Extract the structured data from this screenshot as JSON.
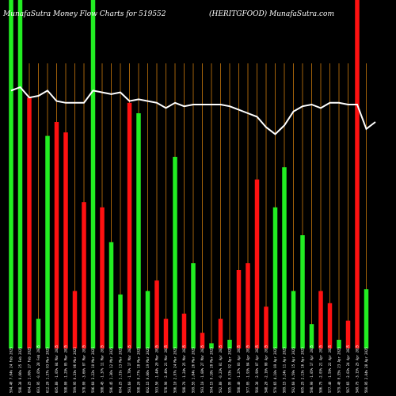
{
  "chart_data": {
    "type": "bar",
    "title_left": "MunafaSutra  Money Flow  Charts for 519552",
    "title_right": "(HERITGFOOD) MunafaSutra.com",
    "ylim": [
      0,
      100
    ],
    "grid": "vertical",
    "colors": {
      "up": "#22ee22",
      "down": "#ff1111",
      "line": "#ffffff",
      "grid": "#a0600a",
      "bg": "#000000"
    },
    "bars": [
      {
        "label": "594.40 7.04% 24 Feb 2025",
        "value": 100,
        "dir": "up"
      },
      {
        "label": "598.30 0.66% 25 Feb 2025",
        "value": 100,
        "dir": "up"
      },
      {
        "label": "604.25 1.00% 27 Feb 2025",
        "value": 72,
        "dir": "down"
      },
      {
        "label": "603.95 -0.05% 28 Feb 2025",
        "value": 8.5,
        "dir": "up"
      },
      {
        "label": "612.20 1.37% 03 Mar 2025",
        "value": 61,
        "dir": "up"
      },
      {
        "label": "605.80 -1.05% 04 Mar 2025",
        "value": 65,
        "dir": "down"
      },
      {
        "label": "598.00 -1.29% 05 Mar 2025",
        "value": 62,
        "dir": "down"
      },
      {
        "label": "599.95 0.33% 06 Mar 2025",
        "value": 16.5,
        "dir": "down"
      },
      {
        "label": "578.00 -3.66% 07 Mar 2025",
        "value": 42,
        "dir": "down"
      },
      {
        "label": "596.60 3.22% 10 Mar 2025",
        "value": 100,
        "dir": "up"
      },
      {
        "label": "588.45 -1.37% 11 Mar 2025",
        "value": 40.5,
        "dir": "down"
      },
      {
        "label": "596.45 1.36% 12 Mar 2025",
        "value": 30.5,
        "dir": "up"
      },
      {
        "label": "604.25 1.31% 13 Mar 2025",
        "value": 15.5,
        "dir": "up"
      },
      {
        "label": "593.60 -1.76% 17 Mar 2025",
        "value": 70.5,
        "dir": "down"
      },
      {
        "label": "598.20 0.77% 18 Mar 2025",
        "value": 67.5,
        "dir": "up"
      },
      {
        "label": "602.15 0.66% 19 Mar 2025",
        "value": 16.5,
        "dir": "up"
      },
      {
        "label": "593.50 -1.44% 20 Mar 2025",
        "value": 19.5,
        "dir": "down"
      },
      {
        "label": "578.90 -2.46% 21 Mar 2025",
        "value": 8.5,
        "dir": "down"
      },
      {
        "label": "596.10 2.97% 24 Mar 2025",
        "value": 55,
        "dir": "up"
      },
      {
        "label": "588.70 -1.24% 25 Mar 2025",
        "value": 10,
        "dir": "down"
      },
      {
        "label": "599.55 1.84% 26 Mar 2025",
        "value": 24.5,
        "dir": "up"
      },
      {
        "label": "593.10 -1.08% 27 Mar 2025",
        "value": 4.5,
        "dir": "down"
      },
      {
        "label": "594.15 0.18% 28 Mar 2025",
        "value": 1.5,
        "dir": "up"
      },
      {
        "label": "592.80 -0.23% 01 Apr 2025",
        "value": 8.5,
        "dir": "down"
      },
      {
        "label": "595.95 0.53% 02 Apr 2025",
        "value": 2.5,
        "dir": "up"
      },
      {
        "label": "588.40 -1.27% 03 Apr 2025",
        "value": 22.5,
        "dir": "down"
      },
      {
        "label": "577.05 -1.93% 04 Apr 2025",
        "value": 24.5,
        "dir": "down"
      },
      {
        "label": "560.30 -2.90% 07 Apr 2025",
        "value": 48.5,
        "dir": "down"
      },
      {
        "label": "548.20 -2.16% 08 Apr 2025",
        "value": 12,
        "dir": "down"
      },
      {
        "label": "570.65 4.10% 09 Apr 2025",
        "value": 40.5,
        "dir": "up"
      },
      {
        "label": "589.15 3.24% 11 Apr 2025",
        "value": 52,
        "dir": "up"
      },
      {
        "label": "592.60 0.59% 15 Apr 2025",
        "value": 16.5,
        "dir": "up"
      },
      {
        "label": "605.25 2.13% 16 Apr 2025",
        "value": 32.5,
        "dir": "up"
      },
      {
        "label": "598.90 -1.05% 17 Apr 2025",
        "value": 7,
        "dir": "up"
      },
      {
        "label": "586.75 -2.03% 21 Apr 2025",
        "value": 16.5,
        "dir": "down"
      },
      {
        "label": "577.40 -1.59% 22 Apr 2025",
        "value": 13,
        "dir": "down"
      },
      {
        "label": "579.40 0.35% 23 Apr 2025",
        "value": 2.5,
        "dir": "up"
      },
      {
        "label": "567.65 -2.03% 24 Apr 2025",
        "value": 8,
        "dir": "down"
      },
      {
        "label": "549.75 -3.15% 25 Apr 2025",
        "value": 100,
        "dir": "down"
      },
      {
        "label": "560.95 2.04% 28 Apr 2025",
        "value": 17,
        "dir": "up"
      }
    ],
    "line": [
      74,
      75,
      72,
      72.5,
      74,
      71,
      70.5,
      70.5,
      70.5,
      74,
      73.5,
      73,
      73.5,
      71,
      71.5,
      71,
      70.5,
      69,
      70.5,
      69.5,
      70,
      70,
      70,
      70,
      69.5,
      68.5,
      67.5,
      66.5,
      63.5,
      61.5,
      64,
      68,
      69.5,
      70,
      69,
      70.5,
      70.5,
      70,
      70,
      63,
      65
    ]
  }
}
